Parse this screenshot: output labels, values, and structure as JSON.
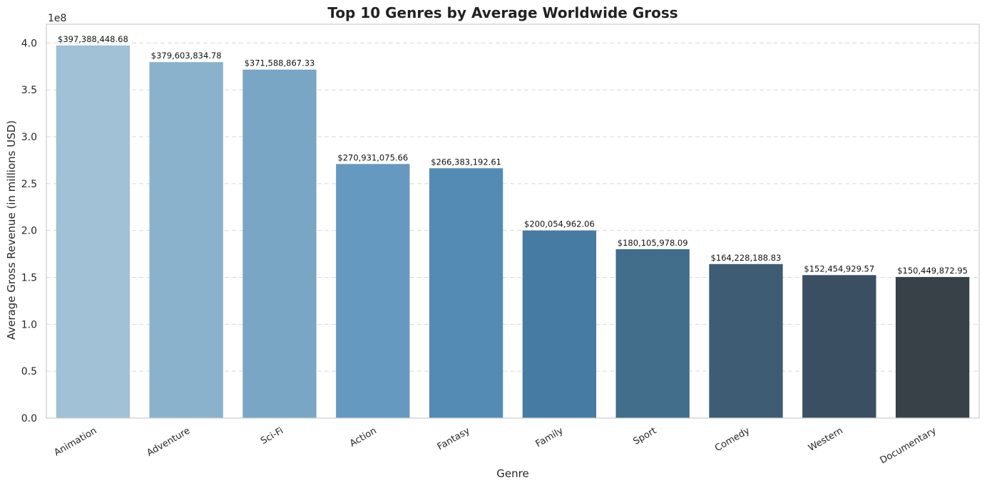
{
  "chart_data": {
    "type": "bar",
    "title": "Top 10 Genres by Average Worldwide Gross",
    "xlabel": "Genre",
    "ylabel": "Average Gross Revenue (in millions USD)",
    "y_offset_text": "1e8",
    "ylim": [
      0,
      420000000
    ],
    "yticks": [
      0,
      50000000,
      100000000,
      150000000,
      200000000,
      250000000,
      300000000,
      350000000,
      400000000
    ],
    "ytick_labels": [
      "0.0",
      "0.5",
      "1.0",
      "1.5",
      "2.0",
      "2.5",
      "3.0",
      "3.5",
      "4.0"
    ],
    "grid": "horizontal dashed",
    "categories": [
      "Animation",
      "Adventure",
      "Sci-Fi",
      "Action",
      "Fantasy",
      "Family",
      "Sport",
      "Comedy",
      "Western",
      "Documentary"
    ],
    "values": [
      397388448.68,
      379603834.78,
      371588867.33,
      270931075.66,
      266383192.61,
      200054962.06,
      180105978.09,
      164228188.83,
      152454929.57,
      150449872.95
    ],
    "value_labels": [
      "$397,388,448.68",
      "$379,603,834.78",
      "$371,588,867.33",
      "$270,931,075.66",
      "$266,383,192.61",
      "$200,054,962.06",
      "$180,105,978.09",
      "$164,228,188.83",
      "$152,454,929.57",
      "$150,449,872.95"
    ],
    "colors": [
      "#a0c1d6",
      "#8bb2cd",
      "#79a6c5",
      "#6699bf",
      "#548bb5",
      "#467ba3",
      "#426d8b",
      "#3e5c74",
      "#3b4f62",
      "#374147"
    ]
  }
}
